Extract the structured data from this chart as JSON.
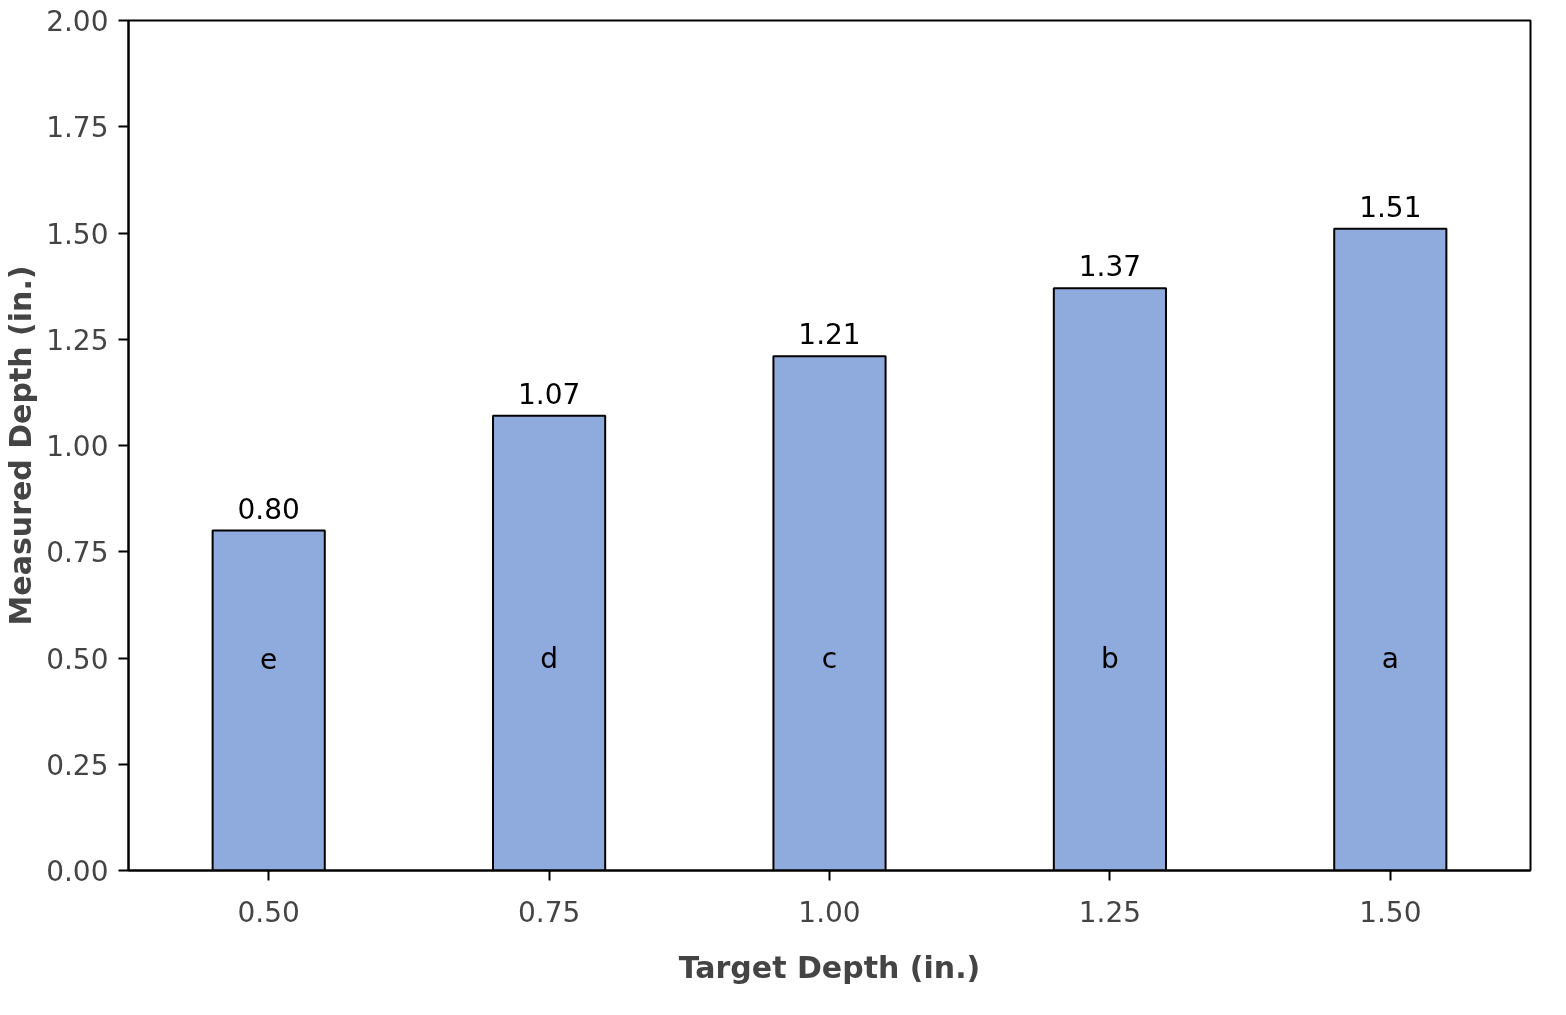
{
  "chart_data": {
    "type": "bar",
    "xlabel": "Target Depth (in.)",
    "ylabel": "Measured Depth (in.)",
    "categories": [
      "0.50",
      "0.75",
      "1.00",
      "1.25",
      "1.50"
    ],
    "values": [
      0.8,
      1.07,
      1.21,
      1.37,
      1.51
    ],
    "value_labels": [
      "0.80",
      "1.07",
      "1.21",
      "1.37",
      "1.51"
    ],
    "color": "#8faadc",
    "ylim": [
      0,
      2
    ],
    "yticks": [
      {
        "value": 0,
        "label": "0.00"
      },
      {
        "value": 0.25,
        "label": "0.25"
      },
      {
        "value": 0.5,
        "label": "0.50"
      },
      {
        "value": 0.75,
        "label": "0.75"
      },
      {
        "value": 1,
        "label": "1.00"
      },
      {
        "value": 1.25,
        "label": "1.25"
      },
      {
        "value": 1.5,
        "label": "1.50"
      },
      {
        "value": 1.75,
        "label": "1.75"
      },
      {
        "value": 2,
        "label": "2.00"
      }
    ],
    "grid": false,
    "annotations": [
      "e",
      "d",
      "c",
      "b",
      "a"
    ]
  }
}
